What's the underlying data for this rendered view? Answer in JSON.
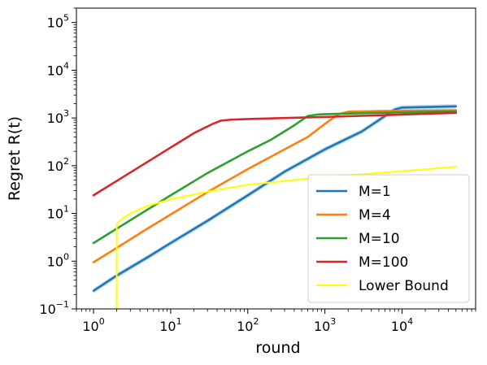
{
  "chart_data": {
    "type": "line",
    "title": "",
    "xlabel": "round",
    "ylabel": "Regret R(t)",
    "xscale": "log",
    "yscale": "log",
    "xlim": [
      0.6,
      90000
    ],
    "ylim": [
      0.1,
      200000
    ],
    "xticks": [
      {
        "value": 1,
        "base": "10",
        "exp": "0"
      },
      {
        "value": 10,
        "base": "10",
        "exp": "1"
      },
      {
        "value": 100,
        "base": "10",
        "exp": "2"
      },
      {
        "value": 1000,
        "base": "10",
        "exp": "3"
      },
      {
        "value": 10000,
        "base": "10",
        "exp": "4"
      }
    ],
    "yticks": [
      {
        "value": 0.1,
        "base": "10",
        "exp": "−1"
      },
      {
        "value": 1,
        "base": "10",
        "exp": "0"
      },
      {
        "value": 10,
        "base": "10",
        "exp": "1"
      },
      {
        "value": 100,
        "base": "10",
        "exp": "2"
      },
      {
        "value": 1000,
        "base": "10",
        "exp": "3"
      },
      {
        "value": 10000,
        "base": "10",
        "exp": "4"
      },
      {
        "value": 100000,
        "base": "10",
        "exp": "5"
      }
    ],
    "grid": false,
    "legend_position": "bottom-right",
    "series": [
      {
        "name": "M=1",
        "color": "#1f77b4",
        "band": true,
        "x": [
          1,
          2,
          5,
          10,
          30,
          100,
          300,
          1000,
          3000,
          5000,
          8000,
          10000,
          50000
        ],
        "y": [
          0.24,
          0.5,
          1.2,
          2.4,
          7,
          24,
          75,
          220,
          520,
          900,
          1500,
          1650,
          1750
        ]
      },
      {
        "name": "M=4",
        "color": "#ff7f0e",
        "band": false,
        "x": [
          1,
          2,
          5,
          10,
          30,
          100,
          300,
          600,
          1000,
          1500,
          2000,
          5000,
          50000
        ],
        "y": [
          0.95,
          1.9,
          4.8,
          9.5,
          28,
          85,
          220,
          400,
          750,
          1200,
          1350,
          1400,
          1450
        ]
      },
      {
        "name": "M=10",
        "color": "#2ca02c",
        "band": false,
        "x": [
          1,
          2,
          5,
          10,
          30,
          100,
          200,
          400,
          600,
          800,
          1000,
          5000,
          50000
        ],
        "y": [
          2.4,
          4.8,
          12,
          24,
          70,
          200,
          350,
          700,
          1100,
          1180,
          1200,
          1280,
          1380
        ]
      },
      {
        "name": "M=100",
        "color": "#d62728",
        "band": false,
        "x": [
          1,
          2,
          5,
          10,
          20,
          35,
          45,
          60,
          100,
          1000,
          10000,
          50000
        ],
        "y": [
          24,
          48,
          120,
          240,
          480,
          750,
          880,
          920,
          950,
          1050,
          1180,
          1280
        ]
      },
      {
        "name": "Lower Bound",
        "color": "#ffff00",
        "band": false,
        "x": [
          2,
          2,
          2.3,
          3,
          5,
          10,
          30,
          100,
          1000,
          10000,
          50000
        ],
        "y": [
          0.1,
          6,
          7.5,
          10,
          14.4,
          19.8,
          28.6,
          40,
          58,
          77,
          95
        ]
      }
    ]
  }
}
